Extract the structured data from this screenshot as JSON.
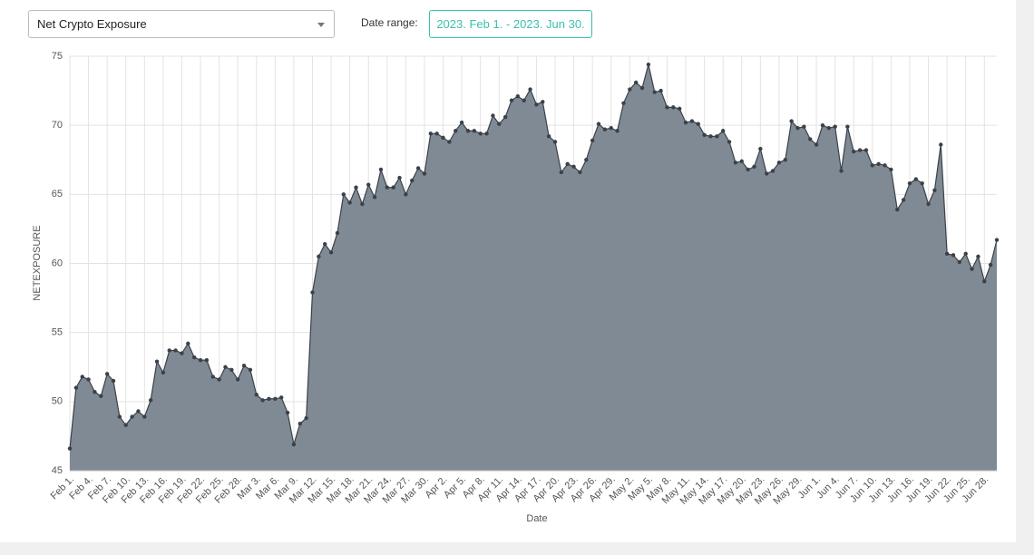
{
  "ui": {
    "selector": "Net Crypto Exposure",
    "date_range_label": "Date range:",
    "date_range": "2023. Feb 1. - 2023. Jun 30."
  },
  "chart_data": {
    "type": "area",
    "x_label": "Date",
    "y_label": "NETEXPOSURE",
    "categories": [
      "Feb 1.",
      null,
      null,
      "Feb 4.",
      null,
      null,
      "Feb 7.",
      null,
      null,
      "Feb 10.",
      null,
      null,
      "Feb 13.",
      null,
      null,
      "Feb 16.",
      null,
      null,
      "Feb 19.",
      null,
      null,
      "Feb 22.",
      null,
      null,
      "Feb 25.",
      null,
      null,
      "Feb 28.",
      null,
      null,
      "Mar 3.",
      null,
      null,
      "Mar 6.",
      null,
      null,
      "Mar 9.",
      null,
      null,
      "Mar 12.",
      null,
      null,
      "Mar 15.",
      null,
      null,
      "Mar 18.",
      null,
      null,
      "Mar 21.",
      null,
      null,
      "Mar 24.",
      null,
      null,
      "Mar 27.",
      null,
      null,
      "Mar 30.",
      null,
      null,
      "Apr 2.",
      null,
      null,
      "Apr 5.",
      null,
      null,
      "Apr 8.",
      null,
      null,
      "Apr 11.",
      null,
      null,
      "Apr 14.",
      null,
      null,
      "Apr 17.",
      null,
      null,
      "Apr 20.",
      null,
      null,
      "Apr 23.",
      null,
      null,
      "Apr 26.",
      null,
      null,
      "Apr 29.",
      null,
      null,
      "May 2.",
      null,
      null,
      "May 5.",
      null,
      null,
      "May 8.",
      null,
      null,
      "May 11.",
      null,
      null,
      "May 14.",
      null,
      null,
      "May 17.",
      null,
      null,
      "May 20.",
      null,
      null,
      "May 23.",
      null,
      null,
      "May 26.",
      null,
      null,
      "May 29.",
      null,
      null,
      "Jun 1.",
      null,
      null,
      "Jun 4.",
      null,
      null,
      "Jun 7.",
      null,
      null,
      "Jun 10.",
      null,
      null,
      "Jun 13.",
      null,
      null,
      "Jun 16.",
      null,
      null,
      "Jun 19.",
      null,
      null,
      "Jun 22.",
      null,
      null,
      "Jun 25.",
      null,
      null,
      "Jun 28.",
      null,
      null
    ],
    "values": [
      46.6,
      51.0,
      51.8,
      51.6,
      50.7,
      50.4,
      52.0,
      51.5,
      48.9,
      48.3,
      48.9,
      49.3,
      48.9,
      50.1,
      52.9,
      52.1,
      53.7,
      53.7,
      53.5,
      54.2,
      53.2,
      53.0,
      53.0,
      51.8,
      51.6,
      52.5,
      52.3,
      51.6,
      52.6,
      52.3,
      50.5,
      50.1,
      50.2,
      50.2,
      50.3,
      49.2,
      46.9,
      48.4,
      48.8,
      57.9,
      60.5,
      61.4,
      60.8,
      62.2,
      65.0,
      64.4,
      65.5,
      64.3,
      65.7,
      64.8,
      66.8,
      65.5,
      65.5,
      66.2,
      65.0,
      66.0,
      66.9,
      66.5,
      69.4,
      69.4,
      69.1,
      68.8,
      69.6,
      70.2,
      69.6,
      69.6,
      69.4,
      69.4,
      70.7,
      70.1,
      70.6,
      71.8,
      72.1,
      71.8,
      72.6,
      71.5,
      71.7,
      69.2,
      68.8,
      66.6,
      67.2,
      67.0,
      66.6,
      67.5,
      68.9,
      70.1,
      69.7,
      69.8,
      69.6,
      71.6,
      72.6,
      73.1,
      72.7,
      74.4,
      72.4,
      72.5,
      71.3,
      71.3,
      71.2,
      70.2,
      70.3,
      70.1,
      69.3,
      69.2,
      69.2,
      69.6,
      68.8,
      67.3,
      67.4,
      66.8,
      67.0,
      68.3,
      66.5,
      66.7,
      67.3,
      67.5,
      70.3,
      69.8,
      69.9,
      69.0,
      68.6,
      70.0,
      69.8,
      69.9,
      66.7,
      69.9,
      68.1,
      68.2,
      68.2,
      67.1,
      67.2,
      67.1,
      66.8,
      63.9,
      64.6,
      65.8,
      66.1,
      65.8,
      64.3,
      65.3,
      68.6,
      60.7,
      60.6,
      60.1,
      60.7,
      59.6,
      60.5,
      58.7,
      59.9,
      61.7
    ],
    "color": "#808a94",
    "line_color": "#3b4149",
    "ylim": [
      45,
      75
    ],
    "yticks": [
      45,
      50,
      55,
      60,
      65,
      70,
      75
    ],
    "grid": true
  }
}
